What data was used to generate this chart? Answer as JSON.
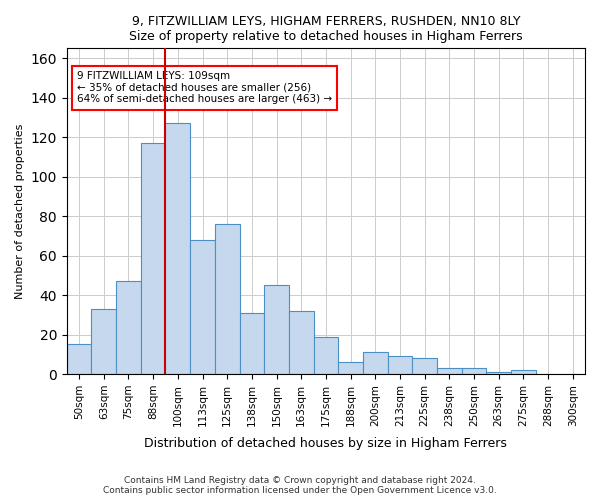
{
  "title1": "9, FITZWILLIAM LEYS, HIGHAM FERRERS, RUSHDEN, NN10 8LY",
  "title2": "Size of property relative to detached houses in Higham Ferrers",
  "xlabel": "Distribution of detached houses by size in Higham Ferrers",
  "ylabel": "Number of detached properties",
  "footer1": "Contains HM Land Registry data © Crown copyright and database right 2024.",
  "footer2": "Contains public sector information licensed under the Open Government Licence v3.0.",
  "bar_color": "#c5d8ed",
  "bar_edge_color": "#4a90c4",
  "annotation_box_color": "#ff0000",
  "vline_color": "#cc0000",
  "annotation_line1": "9 FITZWILLIAM LEYS: 109sqm",
  "annotation_line2": "← 35% of detached houses are smaller (256)",
  "annotation_line3": "64% of semi-detached houses are larger (463) →",
  "categories": [
    "50sqm",
    "63sqm",
    "75sqm",
    "88sqm",
    "100sqm",
    "113sqm",
    "125sqm",
    "138sqm",
    "150sqm",
    "163sqm",
    "175sqm",
    "188sqm",
    "200sqm",
    "213sqm",
    "225sqm",
    "238sqm",
    "250sqm",
    "263sqm",
    "275sqm",
    "288sqm",
    "300sqm"
  ],
  "values": [
    15,
    33,
    47,
    117,
    127,
    68,
    76,
    31,
    45,
    32,
    19,
    6,
    11,
    9,
    8,
    3,
    3,
    1,
    2,
    0,
    0
  ],
  "vline_x": 4.0,
  "ylim": [
    0,
    165
  ],
  "yticks": [
    0,
    20,
    40,
    60,
    80,
    100,
    120,
    140,
    160
  ]
}
